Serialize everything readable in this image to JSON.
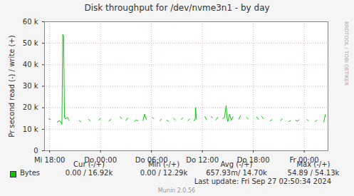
{
  "chart_data": {
    "type": "line",
    "title": "Disk throughput for /dev/nvme3n1 - by day",
    "y_label": "Pr second read (-) / write (+)",
    "x": [
      17.9,
      18.1,
      18.3,
      18.9,
      19.1,
      19.3,
      19.45,
      19.55,
      19.65,
      19.75,
      19.9,
      20.1,
      20.25,
      20.4,
      21.5,
      21.7,
      21.9,
      22.6,
      22.8,
      23.0,
      23.8,
      24.0,
      24.2,
      25.0,
      25.2,
      25.4,
      26.3,
      26.5,
      26.7,
      27.0,
      27.2,
      27.4,
      28.0,
      28.2,
      28.4,
      28.6,
      29.0,
      29.2,
      29.4,
      29.6,
      30.1,
      30.3,
      30.5,
      31.0,
      31.2,
      31.4,
      31.8,
      32.0,
      32.2,
      32.6,
      32.8,
      33.0,
      33.5,
      33.7,
      33.9,
      34.3,
      34.5,
      34.7,
      35.0,
      35.15,
      35.2,
      35.3,
      35.45,
      36.3,
      36.5,
      36.7,
      37.0,
      37.2,
      37.4,
      37.6,
      37.8,
      38.0,
      38.4,
      38.6,
      38.8,
      38.9,
      39.0,
      39.2,
      39.4,
      39.6,
      39.8,
      40.3,
      40.5,
      40.7,
      41.2,
      41.4,
      41.6,
      42.4,
      42.6,
      42.8,
      43.0,
      43.2,
      43.4,
      44.0,
      44.2,
      44.4,
      45.2,
      45.4,
      45.6,
      46.2,
      46.4,
      46.6,
      47.0,
      47.2,
      47.4,
      47.6,
      48.3,
      48.5,
      48.7,
      49.3,
      49.5,
      49.7,
      50.3,
      50.5
    ],
    "series": [
      {
        "name": "Bytes",
        "color": "#00cc00",
        "values": [
          14800,
          14600,
          null,
          13200,
          14000,
          13500,
          12300,
          54130,
          53500,
          15500,
          14800,
          15600,
          14200,
          null,
          14000,
          13400,
          null,
          14600,
          13900,
          null,
          14300,
          15000,
          null,
          13800,
          14600,
          null,
          15800,
          14900,
          null,
          14100,
          15200,
          null,
          13600,
          14400,
          13900,
          null,
          14200,
          17000,
          14500,
          null,
          15600,
          14800,
          null,
          14000,
          14700,
          null,
          14200,
          13700,
          null,
          15100,
          14300,
          null,
          14600,
          15300,
          null,
          14000,
          14800,
          null,
          14200,
          14500,
          20100,
          14700,
          null,
          15900,
          14400,
          null,
          16000,
          15200,
          null,
          14300,
          15600,
          null,
          14900,
          15400,
          21000,
          15200,
          13600,
          17000,
          14200,
          15800,
          null,
          14700,
          16300,
          null,
          15500,
          14800,
          null,
          15700,
          14600,
          null,
          15900,
          14900,
          null,
          13900,
          14500,
          null,
          14100,
          14800,
          null,
          13600,
          14000,
          null,
          14200,
          13800,
          14400,
          null,
          14600,
          13900,
          null,
          13500,
          14300,
          null,
          13400,
          16920
        ],
        "stats": [
          "0.00 / 16.92k",
          "0.00 / 12.29k",
          "657.93m/ 14.70k",
          "54.89 / 54.13k"
        ]
      }
    ],
    "stats_columns": [
      "Cur (-/+)",
      "Min (-/+)",
      "Avg (-/+)",
      "Max (-/+)"
    ],
    "xlim": [
      17.4,
      50.8
    ],
    "xticks": [
      {
        "value": 18,
        "label": "Mi 18:00"
      },
      {
        "value": 24,
        "label": "Do 00:00"
      },
      {
        "value": 30,
        "label": "Do 06:00"
      },
      {
        "value": 36,
        "label": "Do 12:00"
      },
      {
        "value": 42,
        "label": "Do 18:00"
      },
      {
        "value": 48,
        "label": "Fr 00:00"
      }
    ],
    "ylim": [
      0,
      60000
    ],
    "yticks": [
      0,
      {
        "value": 10000,
        "label": "10 k"
      },
      {
        "value": 20000,
        "label": "20 k"
      },
      {
        "value": 30000,
        "label": "30 k"
      },
      {
        "value": 40000,
        "label": "40 k"
      },
      {
        "value": 50000,
        "label": "50 k"
      },
      {
        "value": 60000,
        "label": "60 k"
      }
    ],
    "grid": true,
    "side_text": "RRDTOOL / TOBI OETIKER",
    "last_update": "Last update: Fri Sep 27 02:50:34 2024",
    "footer": "Munin 2.0.56"
  }
}
